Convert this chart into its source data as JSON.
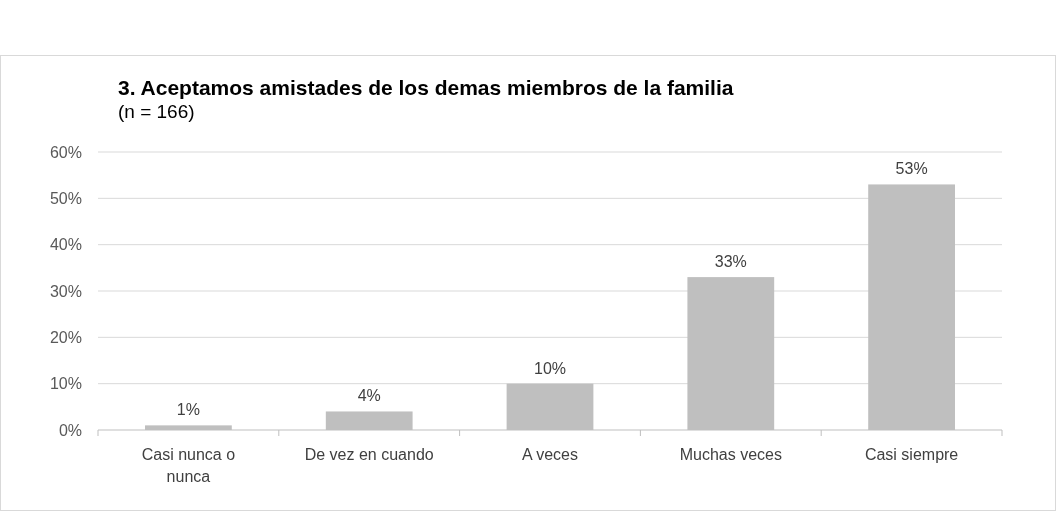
{
  "chart_data": {
    "type": "bar",
    "title": "3. Aceptamos amistades de los demas miembros de la familia",
    "subtitle": "(n = 166)",
    "categories": [
      "Casi nunca o nunca",
      "De vez en cuando",
      "A veces",
      "Muchas veces",
      "Casi siempre"
    ],
    "values": [
      1,
      4,
      10,
      33,
      53
    ],
    "value_labels": [
      "1%",
      "4%",
      "10%",
      "33%",
      "53%"
    ],
    "color": "#bfbfbf",
    "ylim": [
      0,
      60
    ],
    "yticks": [
      {
        "value": 0,
        "label": "0%"
      },
      {
        "value": 10,
        "label": "10%"
      },
      {
        "value": 20,
        "label": "20%"
      },
      {
        "value": 30,
        "label": "30%"
      },
      {
        "value": 40,
        "label": "40%"
      },
      {
        "value": 50,
        "label": "50%"
      },
      {
        "value": 60,
        "label": "60%"
      }
    ],
    "grid": "y"
  }
}
